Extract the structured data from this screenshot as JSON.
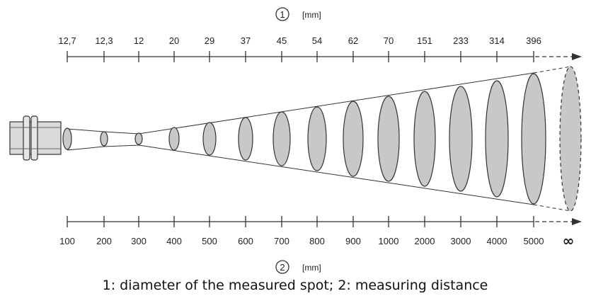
{
  "top_scale": {
    "marker": "1",
    "unit": "[mm]",
    "labels": [
      "12,7",
      "12,3",
      "12",
      "20",
      "29",
      "37",
      "45",
      "54",
      "62",
      "70",
      "151",
      "233",
      "314",
      "396"
    ]
  },
  "bottom_scale": {
    "marker": "2",
    "unit": "[mm]",
    "labels": [
      "100",
      "200",
      "300",
      "400",
      "500",
      "600",
      "700",
      "800",
      "900",
      "1000",
      "2000",
      "3000",
      "4000",
      "5000"
    ],
    "infinity_label": "∞"
  },
  "colors": {
    "spot_fill": "#c8c8c8",
    "line": "#333333",
    "sensor_fill": "#d9d9d9"
  },
  "caption": "1: diameter of the measured spot; 2: measuring distance"
}
